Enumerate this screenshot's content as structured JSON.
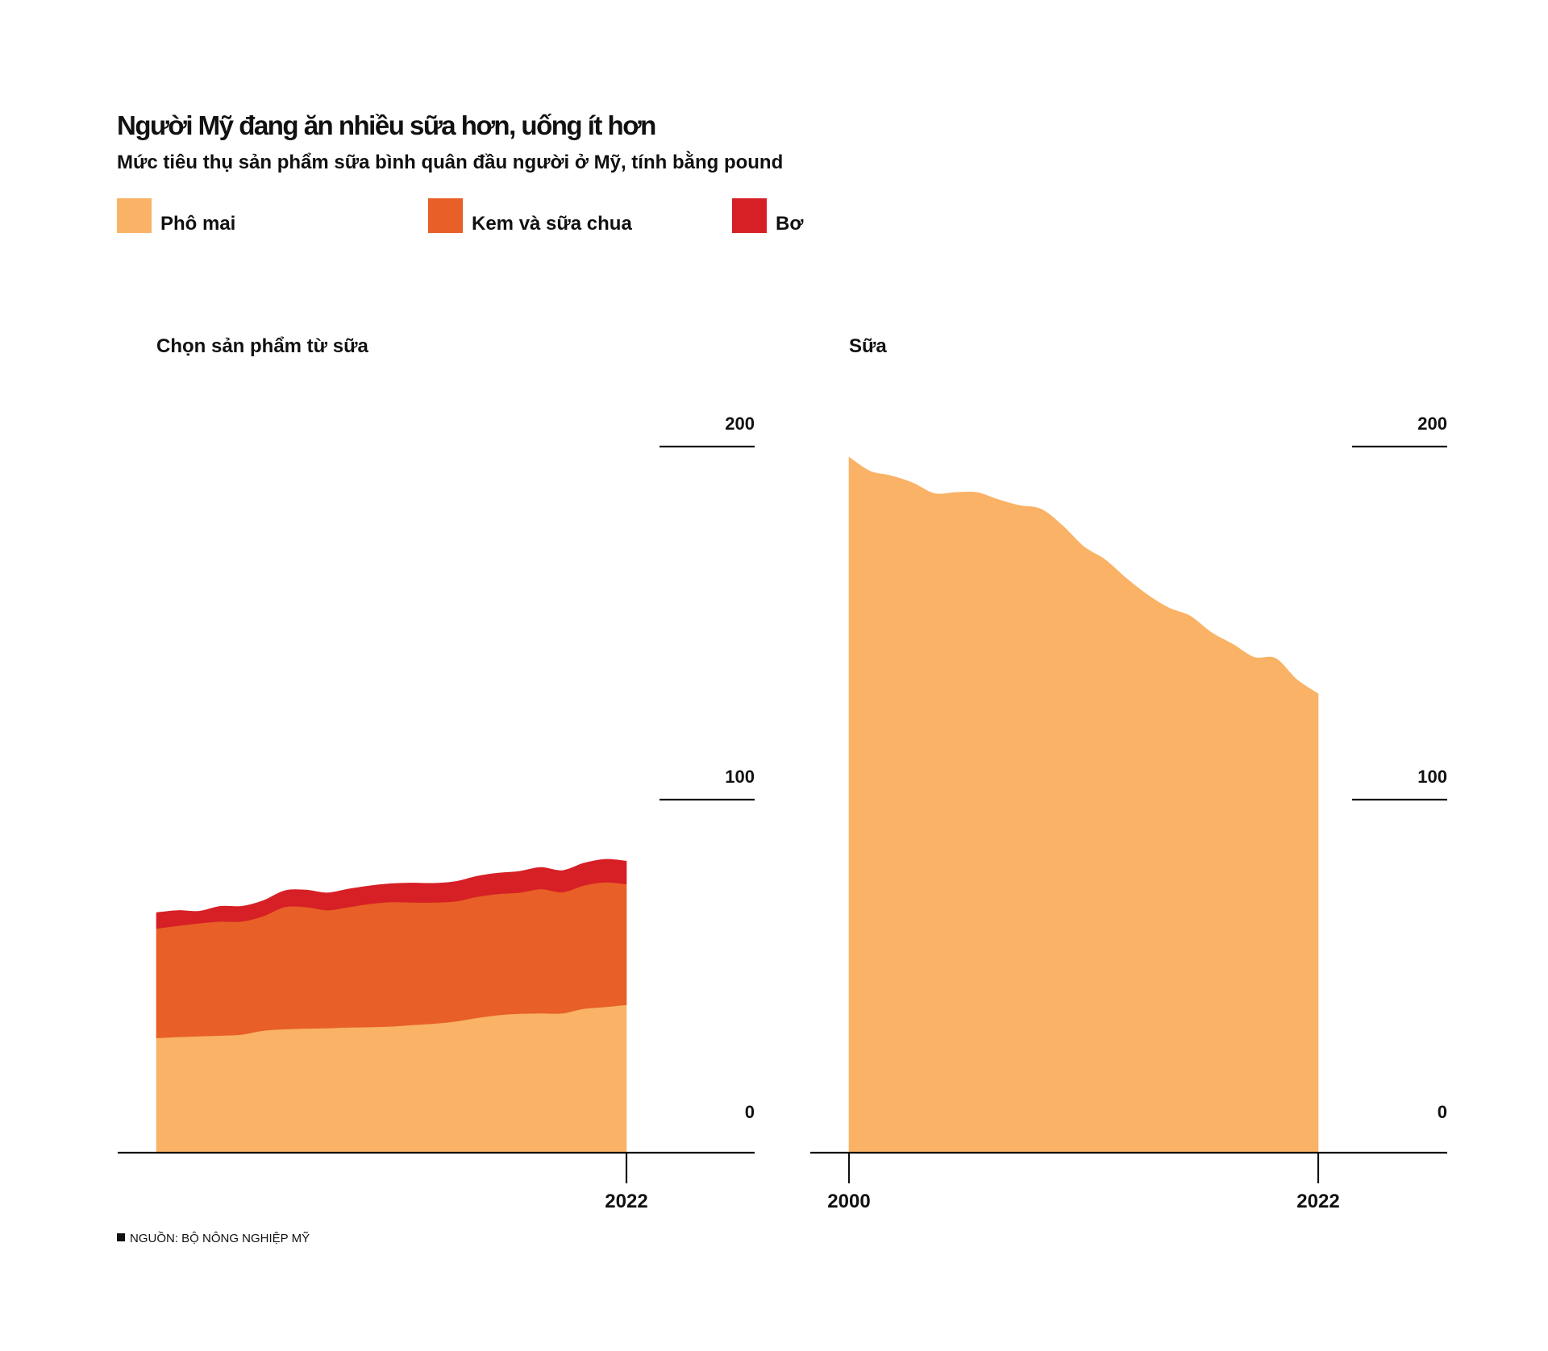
{
  "header": {
    "title": "Người Mỹ đang ăn nhiều sữa hơn, uống ít hơn",
    "subtitle": "Mức tiêu thụ sản phẩm sữa bình quân đầu người ở Mỹ, tính bằng pound"
  },
  "legend": [
    {
      "label": "Phô mai",
      "color": "#F9B266"
    },
    {
      "label": "Kem và sữa chua",
      "color": "#E85F27"
    },
    {
      "label": "Bơ",
      "color": "#D62026"
    }
  ],
  "source": {
    "text": "NGUỒN: BỘ NÔNG NGHIỆP MỸ"
  },
  "chart_data": [
    {
      "type": "area",
      "stacked": true,
      "title": "Chọn sản phẩm từ sữa",
      "xlabel": "",
      "ylabel": "",
      "x": [
        2000,
        2001,
        2002,
        2003,
        2004,
        2005,
        2006,
        2007,
        2008,
        2009,
        2010,
        2011,
        2012,
        2013,
        2014,
        2015,
        2016,
        2017,
        2018,
        2019,
        2020,
        2021,
        2022
      ],
      "x_tick_labels": [
        "2022"
      ],
      "ylim": [
        0,
        200
      ],
      "y_tick_labels": [
        "200",
        "100",
        "0"
      ],
      "grid": false,
      "series": [
        {
          "name": "Phô mai",
          "color": "#F9B266",
          "values": [
            32.5,
            32.8,
            33.0,
            33.2,
            33.5,
            34.6,
            35.0,
            35.2,
            35.3,
            35.5,
            35.6,
            35.8,
            36.2,
            36.6,
            37.2,
            38.2,
            39.0,
            39.4,
            39.5,
            39.5,
            40.8,
            41.3,
            41.9
          ]
        },
        {
          "name": "Kem và sữa chua",
          "color": "#E85F27",
          "values": [
            31.0,
            31.5,
            32.0,
            32.3,
            32.0,
            32.4,
            34.6,
            34.4,
            33.4,
            34.1,
            34.9,
            35.2,
            34.7,
            34.3,
            34.0,
            34.3,
            34.3,
            34.3,
            35.2,
            34.3,
            34.9,
            35.3,
            34.2
          ]
        },
        {
          "name": "Bơ",
          "color": "#D62026",
          "values": [
            4.5,
            4.3,
            3.4,
            4.3,
            4.3,
            4.4,
            4.6,
            4.8,
            4.9,
            5.1,
            5.1,
            5.2,
            5.5,
            5.4,
            5.6,
            5.8,
            5.9,
            6.0,
            6.1,
            6.1,
            6.3,
            6.5,
            6.5
          ]
        }
      ]
    },
    {
      "type": "area",
      "stacked": false,
      "title": "Sữa",
      "xlabel": "",
      "ylabel": "",
      "x": [
        2000,
        2001,
        2002,
        2003,
        2004,
        2005,
        2006,
        2007,
        2008,
        2009,
        2010,
        2011,
        2012,
        2013,
        2014,
        2015,
        2016,
        2017,
        2018,
        2019,
        2020,
        2021,
        2022
      ],
      "x_tick_labels": [
        "2000",
        "2022"
      ],
      "ylim": [
        0,
        200
      ],
      "y_tick_labels": [
        "200",
        "100",
        "0"
      ],
      "grid": false,
      "series": [
        {
          "name": "Sữa",
          "color": "#F9B266",
          "values": [
            197.0,
            193.0,
            191.7,
            189.7,
            186.7,
            187.0,
            187.0,
            185.0,
            183.3,
            182.3,
            177.7,
            171.7,
            168.0,
            162.7,
            158.0,
            154.3,
            152.0,
            147.3,
            144.0,
            140.3,
            140.0,
            134.0,
            130.0
          ]
        }
      ]
    }
  ]
}
